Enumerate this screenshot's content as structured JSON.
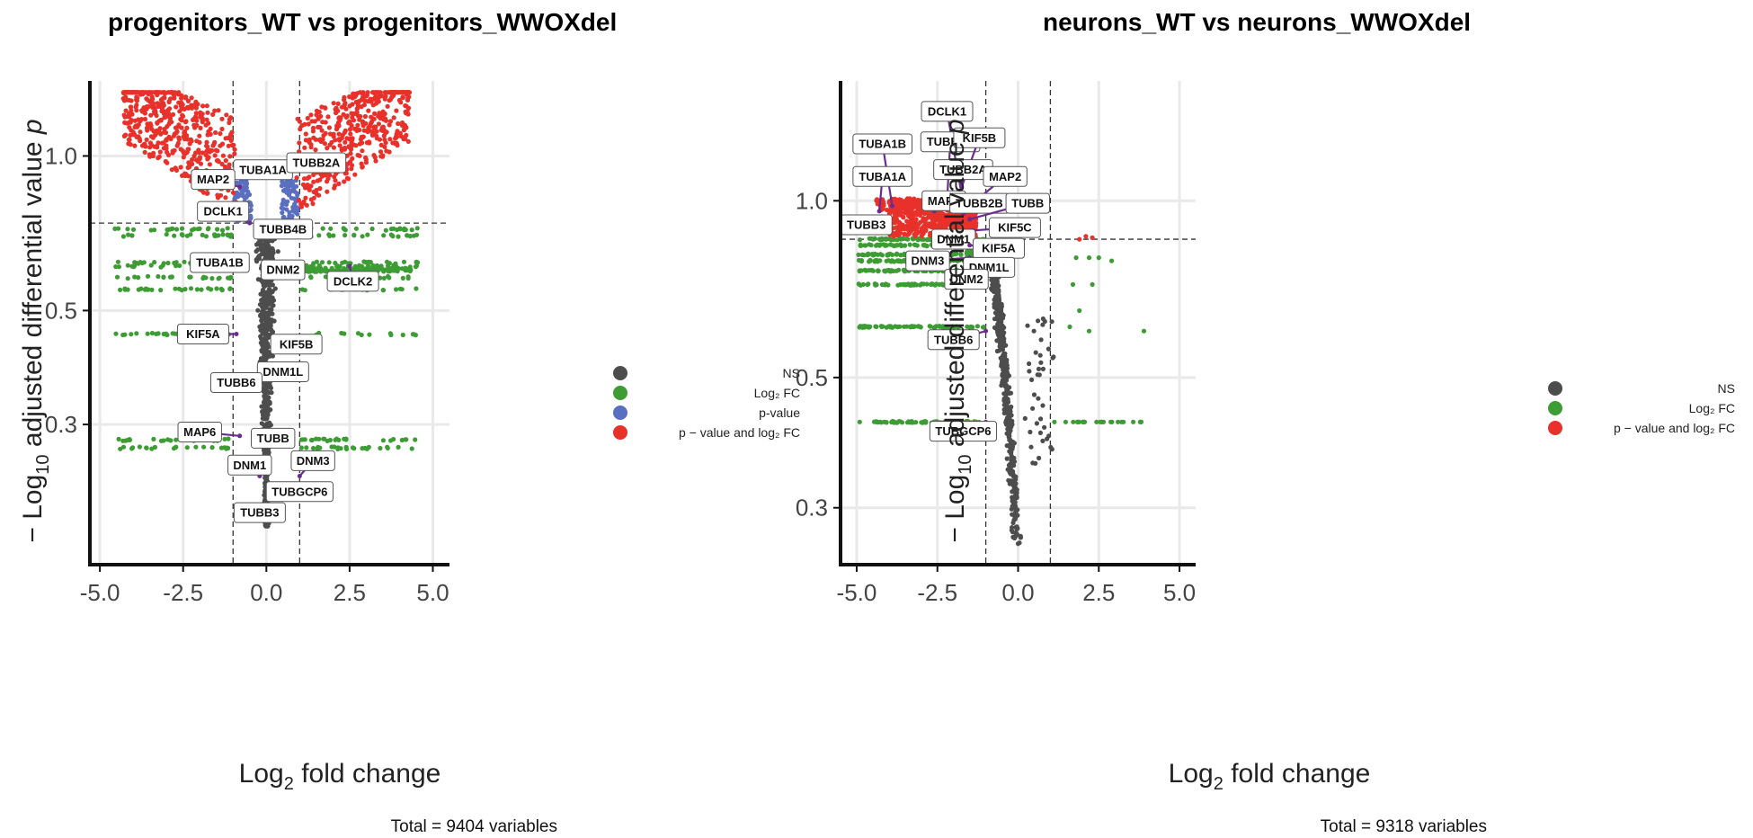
{
  "colors": {
    "NS": "#4d4d4d",
    "FC": "#3e9c35",
    "P": "#5a6fbf",
    "PFC": "#e8312a",
    "label_line": "#6a2c91",
    "grid": "#e9e9e9",
    "threshold": "#333333"
  },
  "chart_data": [
    {
      "type": "scatter",
      "subtype": "volcano",
      "title": "progenitors_WT vs progenitors_WWOXdel",
      "xlabel": "Log2 fold change",
      "ylabel": "−Log10 adjusted differential value p",
      "xlim": [
        -5.3,
        5.5
      ],
      "ylim": [
        0.16,
        1.4
      ],
      "xticks": [
        -5,
        -2.5,
        0,
        2.5,
        5
      ],
      "xtick_labels": [
        "-5.0",
        "-2.5",
        "0.0",
        "2.5",
        "5.0"
      ],
      "yticks": [
        0.3,
        0.5,
        1.0
      ],
      "ytick_labels": [
        "0.3",
        "0.5",
        "1.0"
      ],
      "y_scale": "log",
      "grid": true,
      "fc_cutoff": 1.0,
      "p_cutoff_line": 0.74,
      "caption": "Total = 9404 variables",
      "legend": {
        "placement": "right",
        "entries": [
          {
            "key": "NS",
            "text": "NS"
          },
          {
            "key": "FC",
            "text": "Log₂ FC"
          },
          {
            "key": "P",
            "text": "p-value"
          },
          {
            "key": "PFC",
            "text": "p − value and log₂ FC"
          }
        ]
      },
      "labels": [
        {
          "text": "TUBA1A",
          "x": 0.1,
          "y": 0.92,
          "lx": -0.1,
          "ly": 0.94
        },
        {
          "text": "TUBB2A",
          "x": 0.8,
          "y": 0.95,
          "lx": 1.5,
          "ly": 0.97
        },
        {
          "text": "MAP2",
          "x": -0.8,
          "y": 0.87,
          "lx": -1.6,
          "ly": 0.9
        },
        {
          "text": "DCLK1",
          "x": -0.5,
          "y": 0.74,
          "lx": -1.3,
          "ly": 0.78
        },
        {
          "text": "TUBB4B",
          "x": -0.3,
          "y": 0.72,
          "lx": 0.5,
          "ly": 0.72
        },
        {
          "text": "TUBA1B",
          "x": -0.7,
          "y": 0.62,
          "lx": -1.4,
          "ly": 0.62
        },
        {
          "text": "DNM2",
          "x": 0.3,
          "y": 0.58,
          "lx": 0.5,
          "ly": 0.6
        },
        {
          "text": "DCLK2",
          "x": 2.5,
          "y": 0.61,
          "lx": 2.6,
          "ly": 0.57
        },
        {
          "text": "KIF5A",
          "x": -0.9,
          "y": 0.45,
          "lx": -1.9,
          "ly": 0.45
        },
        {
          "text": "KIF5B",
          "x": 0.3,
          "y": 0.42,
          "lx": 0.9,
          "ly": 0.43
        },
        {
          "text": "DNM1L",
          "x": 0.2,
          "y": 0.38,
          "lx": 0.5,
          "ly": 0.38
        },
        {
          "text": "TUBB6",
          "x": -0.3,
          "y": 0.35,
          "lx": -0.9,
          "ly": 0.362
        },
        {
          "text": "MAP6",
          "x": -0.8,
          "y": 0.285,
          "lx": -2.0,
          "ly": 0.29
        },
        {
          "text": "TUBB",
          "x": 0.1,
          "y": 0.272,
          "lx": 0.2,
          "ly": 0.282
        },
        {
          "text": "DNM3",
          "x": 1.0,
          "y": 0.238,
          "lx": 1.4,
          "ly": 0.255
        },
        {
          "text": "DNM1",
          "x": -0.2,
          "y": 0.238,
          "lx": -0.5,
          "ly": 0.25
        },
        {
          "text": "TUBGCP6",
          "x": 1.2,
          "y": 0.228,
          "lx": 1.0,
          "ly": 0.222
        },
        {
          "text": "TUBB3",
          "x": -0.1,
          "y": 0.21,
          "lx": -0.2,
          "ly": 0.202
        }
      ]
    },
    {
      "type": "scatter",
      "subtype": "volcano",
      "title": "neurons_WT vs neurons_WWOXdel",
      "xlabel": "Log2 fold change",
      "ylabel": "−Log10 adjusted differential value p",
      "xlim": [
        -5.5,
        5.5
      ],
      "ylim": [
        0.24,
        1.6
      ],
      "xticks": [
        -5,
        -2.5,
        0,
        2.5,
        5
      ],
      "xtick_labels": [
        "-5.0",
        "-2.5",
        "0.0",
        "2.5",
        "5.0"
      ],
      "yticks": [
        0.3,
        0.5,
        1.0
      ],
      "ytick_labels": [
        "0.3",
        "0.5",
        "1.0"
      ],
      "y_scale": "log",
      "grid": true,
      "fc_cutoff": 1.0,
      "p_cutoff_line": 0.86,
      "caption": "Total = 9318 variables",
      "legend": {
        "placement": "right",
        "entries": [
          {
            "key": "NS",
            "text": "NS"
          },
          {
            "key": "FC",
            "text": "Log₂ FC"
          },
          {
            "key": "PFC",
            "text": "p − value and log₂ FC"
          }
        ]
      },
      "labels": [
        {
          "text": "DCLK1",
          "x": -1.7,
          "y": 0.99,
          "lx": -2.2,
          "ly": 1.42
        },
        {
          "text": "TUBA1B",
          "x": -3.9,
          "y": 0.98,
          "lx": -4.2,
          "ly": 1.25
        },
        {
          "text": "TUBB4B",
          "x": -2.2,
          "y": 1.0,
          "lx": -2.1,
          "ly": 1.26
        },
        {
          "text": "KIF5B",
          "x": -1.9,
          "y": 1.0,
          "lx": -1.2,
          "ly": 1.28
        },
        {
          "text": "TUBB2A",
          "x": -1.8,
          "y": 1.0,
          "lx": -1.7,
          "ly": 1.13
        },
        {
          "text": "TUBA1A",
          "x": -4.3,
          "y": 0.96,
          "lx": -4.2,
          "ly": 1.1
        },
        {
          "text": "MAP2",
          "x": -1.7,
          "y": 0.96,
          "lx": -0.4,
          "ly": 1.1
        },
        {
          "text": "MAP6",
          "x": -2.6,
          "y": 0.96,
          "lx": -2.3,
          "ly": 1.0
        },
        {
          "text": "TUBB2B",
          "x": -1.7,
          "y": 0.95,
          "lx": -1.2,
          "ly": 0.99
        },
        {
          "text": "TUBB",
          "x": -1.5,
          "y": 0.93,
          "lx": 0.3,
          "ly": 0.99
        },
        {
          "text": "TUBB3",
          "x": -4.2,
          "y": 0.94,
          "lx": -4.7,
          "ly": 0.91
        },
        {
          "text": "KIF5C",
          "x": -1.4,
          "y": 0.89,
          "lx": -0.1,
          "ly": 0.9
        },
        {
          "text": "DNM1",
          "x": -1.5,
          "y": 0.86,
          "lx": -2.0,
          "ly": 0.86
        },
        {
          "text": "KIF5A",
          "x": -1.5,
          "y": 0.84,
          "lx": -0.6,
          "ly": 0.83
        },
        {
          "text": "DNM3",
          "x": -1.5,
          "y": 0.8,
          "lx": -2.8,
          "ly": 0.79
        },
        {
          "text": "DNM1L",
          "x": -1.4,
          "y": 0.78,
          "lx": -0.9,
          "ly": 0.77
        },
        {
          "text": "DNM2",
          "x": -1.3,
          "y": 0.76,
          "lx": -1.6,
          "ly": 0.735
        },
        {
          "text": "TUBB6",
          "x": -1.0,
          "y": 0.6,
          "lx": -2.0,
          "ly": 0.58
        },
        {
          "text": "TUBGCP6",
          "x": -1.0,
          "y": 0.42,
          "lx": -1.7,
          "ly": 0.405
        }
      ]
    }
  ]
}
